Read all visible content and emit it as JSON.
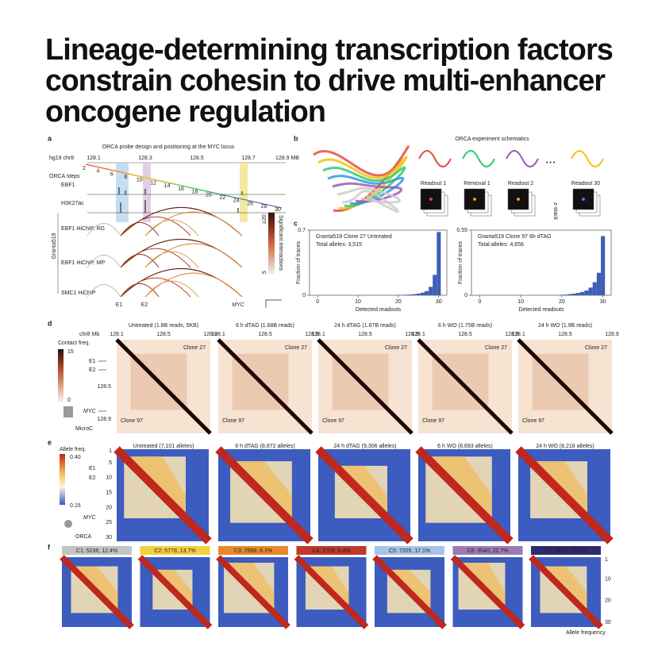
{
  "title_lines": [
    "Lineage-determining transcription factors",
    "constrain cohesin to drive multi-enhancer",
    "oncogene regulation"
  ],
  "panel_labels": [
    "a",
    "b",
    "c",
    "d",
    "e",
    "f"
  ],
  "panel_a": {
    "title": "ORCA probe design and positioning at the MYC locus",
    "genome": "hg19 chr8",
    "coords": [
      "128.1",
      "128.3",
      "128.5",
      "128.7",
      "128.9 MB"
    ],
    "steps_label": "ORCA steps",
    "steps": [
      2,
      4,
      6,
      8,
      10,
      12,
      14,
      16,
      18,
      20,
      22,
      24,
      26,
      28,
      30
    ],
    "tracks": [
      "EBF1",
      "H3K27ac"
    ],
    "cell_line": "Granta519",
    "hichip": [
      "EBF1 HiChIP, RG",
      "EBF1 HiChIP, MP",
      "SMC1 HiChIP"
    ],
    "elements": [
      "E1",
      "E2",
      "MYC"
    ],
    "legend_title": "Significant interactions",
    "legend_ticks": [
      "≥20",
      "5"
    ]
  },
  "panel_b": {
    "title": "ORCA experiment schematics",
    "steps": [
      "Readout 1",
      "Removal 1",
      "Readout 2",
      "Readout 30"
    ],
    "stack": "z-stack"
  },
  "panel_c": {
    "y_label": "Fraction of traces",
    "x_label": "Detected readouts",
    "charts": [
      {
        "type": "bar",
        "title": "Granta519 Clone 27 Untreated",
        "subtitle": "Total alleles: 3,515",
        "x": [
          20,
          21,
          22,
          23,
          24,
          25,
          26,
          27,
          28,
          29,
          30
        ],
        "values": [
          0.003,
          0.004,
          0.006,
          0.008,
          0.012,
          0.018,
          0.028,
          0.045,
          0.09,
          0.22,
          0.68
        ],
        "xlim": [
          -2,
          32
        ],
        "xticks": [
          0,
          10,
          20,
          30
        ],
        "ylim": [
          0,
          0.7
        ],
        "yticks": [
          0,
          0.7
        ],
        "color": "#3f5fb5"
      },
      {
        "type": "bar",
        "title": "Granta519 Clone 97 6h dTAG",
        "subtitle": "Total alleles: 4,656",
        "x": [
          20,
          21,
          22,
          23,
          24,
          25,
          26,
          27,
          28,
          29,
          30
        ],
        "values": [
          0.004,
          0.006,
          0.01,
          0.014,
          0.02,
          0.028,
          0.04,
          0.065,
          0.11,
          0.19,
          0.5
        ],
        "xlim": [
          -2,
          32
        ],
        "xticks": [
          0,
          10,
          20,
          30
        ],
        "ylim": [
          0,
          0.55
        ],
        "yticks": [
          0,
          0.55
        ],
        "color": "#3f5fb5"
      }
    ]
  },
  "panel_d": {
    "axis_label": "chr8 Mb",
    "scale_title": "Contact freq.",
    "scale_ticks": [
      15,
      0
    ],
    "conditions": [
      "Untreated (1.8B reads, 5KB)",
      "6 h dTAG (1.68B reads)",
      "24 h dTAG (1.67B reads)",
      "6 h WO (1.75B reads)",
      "24 h WO (1.9B reads)"
    ],
    "xticks": [
      128.1,
      128.5,
      128.9
    ],
    "yticks": [
      128.5,
      128.9
    ],
    "corner_labels": [
      "Clone 27",
      "Clone 97"
    ],
    "elements": [
      "E1",
      "E2",
      "MYC"
    ],
    "method": "MicroC"
  },
  "panel_e": {
    "scale_title": "Allele freq.",
    "scale_ticks": [
      "0.40",
      "0.15"
    ],
    "conditions": [
      "Untreated (7,101 alleles)",
      "6 h dTAG (8,872 alleles)",
      "24 h dTAG (9,306 alleles)",
      "6 h WO (8,693 alleles)",
      "24 h WO (8,218 alleles)"
    ],
    "yticks": [
      1,
      5,
      10,
      15,
      20,
      25,
      30
    ],
    "elements": [
      "E1",
      "E2",
      "MYC"
    ],
    "method": "ORCA"
  },
  "panel_f": {
    "clusters": [
      {
        "label": "C1: 5236, 12.4%",
        "color": "#c4c4c4"
      },
      {
        "label": "C2: 5778, 13.7%",
        "color": "#f4d03f"
      },
      {
        "label": "C3: 2568, 6.1%",
        "color": "#e8892b"
      },
      {
        "label": "C4: 2709, 6.4%",
        "color": "#c0392b"
      },
      {
        "label": "C5: 7205, 17.1%",
        "color": "#a8c3ea"
      },
      {
        "label": "C6: 9540, 22.7%",
        "color": "#9b7bb5"
      },
      {
        "label": "C7: 9080, 21.6%",
        "color": "#2d2a6e"
      }
    ],
    "yticks": [
      1,
      10,
      20,
      30
    ],
    "scale_title": "Allele frequency"
  }
}
